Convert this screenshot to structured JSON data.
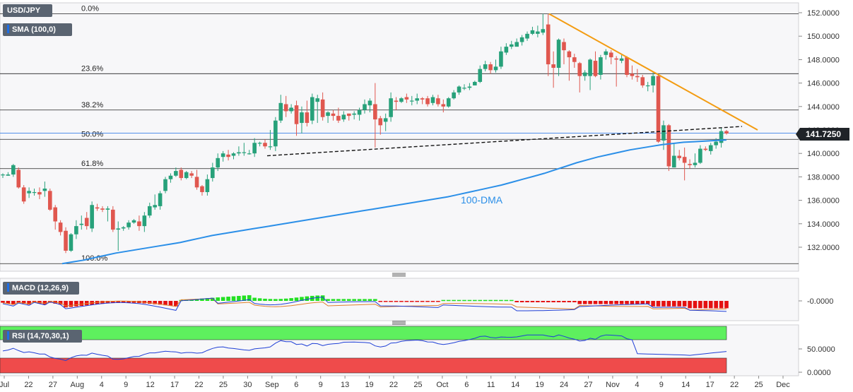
{
  "symbol": "USD/JPY",
  "indicators": {
    "sma": "SMA (100,0)",
    "macd": "MACD (12,26,9)",
    "rsi": "RSI (14,70,30,1)"
  },
  "last_price": "141.7250",
  "line_label": "100-DMA",
  "colors": {
    "bull": "#27a17a",
    "bear": "#e0574f",
    "sma": "#2b8fe8",
    "trendline": "#f39c12",
    "macd_pos": "#22e022",
    "macd_neg": "#e41111",
    "rsi_upper": "#5ef05e",
    "rsi_lower": "#ef4b4b"
  },
  "fibonacci": [
    {
      "label": "0.0%",
      "price": 151.9
    },
    {
      "label": "23.6%",
      "price": 146.8
    },
    {
      "label": "38.2%",
      "price": 143.7
    },
    {
      "label": "50.0%",
      "price": 141.2
    },
    {
      "label": "61.8%",
      "price": 138.7
    },
    {
      "label": "100.0%",
      "price": 130.6
    }
  ],
  "price_axis": {
    "ticks": [
      "152.0000",
      "150.0000",
      "148.0000",
      "146.0000",
      "144.0000",
      "142.0000",
      "140.0000",
      "138.0000",
      "136.0000",
      "134.0000",
      "132.0000"
    ]
  },
  "macd_axis": {
    "ticks": [
      "-0.0000"
    ]
  },
  "rsi_axis": {
    "ticks": [
      "50.0000",
      "0.0000"
    ]
  },
  "x_axis": {
    "labels": [
      "Jul",
      "22",
      "27",
      "Aug",
      "4",
      "9",
      "12",
      "17",
      "22",
      "25",
      "30",
      "Sep",
      "6",
      "9",
      "13",
      "19",
      "22",
      "25",
      "Oct",
      "6",
      "11",
      "14",
      "19",
      "24",
      "27",
      "Nov",
      "4",
      "9",
      "14",
      "17",
      "22",
      "25",
      "Dec"
    ]
  },
  "chart_data": {
    "type": "candlestick",
    "title": "USD/JPY",
    "price_range": [
      130.6,
      152.0
    ],
    "candles": [
      [
        138.2,
        138.2,
        137.9,
        138.3
      ],
      [
        138.1,
        138.2,
        138.1,
        138.4
      ],
      [
        138.2,
        139.0,
        138.0,
        139.1
      ],
      [
        138.6,
        137.1,
        137.0,
        138.8
      ],
      [
        137.1,
        135.9,
        135.7,
        137.3
      ],
      [
        136.6,
        136.8,
        136.2,
        137.1
      ],
      [
        136.7,
        136.7,
        136.4,
        137.0
      ],
      [
        136.7,
        136.5,
        136.1,
        137.1
      ],
      [
        136.8,
        137.0,
        136.3,
        137.6
      ],
      [
        136.8,
        135.2,
        135.1,
        137.0
      ],
      [
        135.4,
        134.2,
        133.5,
        135.6
      ],
      [
        134.1,
        133.3,
        133.0,
        134.3
      ],
      [
        133.4,
        131.7,
        131.5,
        133.7
      ],
      [
        131.7,
        133.1,
        131.6,
        133.2
      ],
      [
        133.1,
        133.8,
        132.7,
        134.3
      ],
      [
        133.9,
        134.0,
        133.5,
        134.7
      ],
      [
        134.5,
        133.8,
        133.5,
        135.0
      ],
      [
        133.6,
        135.6,
        133.3,
        135.9
      ],
      [
        135.4,
        135.3,
        135.1,
        135.7
      ],
      [
        135.3,
        135.2,
        135.0,
        135.5
      ],
      [
        135.2,
        135.3,
        134.2,
        135.5
      ],
      [
        135.2,
        133.5,
        133.3,
        135.5
      ],
      [
        133.5,
        133.6,
        131.7,
        134.2
      ],
      [
        133.6,
        133.7,
        133.4,
        133.8
      ],
      [
        133.7,
        134.1,
        133.5,
        134.3
      ],
      [
        134.1,
        134.3,
        134.0,
        134.4
      ],
      [
        134.2,
        133.8,
        133.4,
        134.7
      ],
      [
        133.8,
        134.7,
        133.3,
        135.0
      ],
      [
        134.7,
        135.5,
        134.5,
        135.8
      ],
      [
        135.4,
        135.6,
        135.2,
        136.5
      ],
      [
        135.5,
        136.6,
        135.2,
        136.8
      ],
      [
        136.8,
        137.8,
        136.6,
        138.0
      ],
      [
        137.8,
        138.1,
        137.5,
        138.3
      ],
      [
        138.1,
        138.5,
        138.0,
        138.8
      ],
      [
        138.6,
        137.9,
        137.7,
        138.8
      ],
      [
        137.9,
        138.4,
        137.8,
        138.5
      ],
      [
        138.3,
        138.1,
        137.9,
        138.5
      ],
      [
        138.0,
        137.1,
        136.9,
        138.6
      ],
      [
        137.2,
        136.7,
        136.4,
        137.3
      ],
      [
        136.7,
        137.8,
        136.4,
        138.2
      ],
      [
        137.9,
        138.8,
        137.6,
        139.2
      ],
      [
        138.8,
        139.6,
        138.5,
        140.0
      ],
      [
        139.7,
        140.0,
        139.3,
        140.2
      ],
      [
        139.9,
        139.7,
        139.4,
        140.3
      ],
      [
        139.8,
        140.0,
        139.5,
        140.1
      ],
      [
        140.0,
        140.1,
        139.8,
        140.6
      ],
      [
        140.1,
        140.1,
        139.8,
        140.9
      ],
      [
        140.0,
        140.0,
        139.9,
        140.3
      ],
      [
        140.0,
        140.9,
        139.7,
        141.3
      ],
      [
        140.9,
        140.9,
        140.6,
        141.0
      ],
      [
        140.9,
        140.6,
        140.4,
        141.2
      ],
      [
        140.6,
        140.6,
        140.3,
        142.0
      ],
      [
        140.6,
        142.8,
        140.2,
        143.1
      ],
      [
        142.8,
        144.3,
        142.6,
        145.0
      ],
      [
        144.2,
        143.6,
        143.1,
        144.9
      ],
      [
        143.6,
        143.9,
        143.4,
        144.2
      ],
      [
        144.1,
        142.5,
        141.5,
        144.5
      ],
      [
        142.6,
        143.5,
        141.7,
        144.0
      ],
      [
        143.5,
        142.6,
        142.3,
        144.5
      ],
      [
        142.8,
        144.8,
        142.5,
        145.1
      ],
      [
        144.4,
        144.7,
        142.6,
        145.0
      ],
      [
        144.6,
        143.1,
        142.8,
        145.2
      ],
      [
        143.2,
        143.5,
        142.6,
        143.6
      ],
      [
        143.4,
        143.2,
        142.8,
        143.7
      ],
      [
        143.2,
        142.8,
        142.6,
        143.9
      ],
      [
        142.9,
        143.3,
        142.7,
        143.6
      ],
      [
        143.4,
        143.2,
        142.8,
        143.4
      ],
      [
        143.3,
        143.4,
        142.9,
        143.6
      ],
      [
        143.3,
        143.7,
        142.8,
        143.9
      ],
      [
        143.7,
        144.2,
        143.4,
        144.6
      ],
      [
        144.1,
        144.5,
        143.5,
        144.7
      ],
      [
        144.2,
        142.9,
        140.5,
        146.0
      ],
      [
        143.0,
        142.4,
        141.6,
        143.2
      ],
      [
        142.7,
        143.0,
        141.9,
        143.4
      ],
      [
        143.1,
        144.7,
        142.7,
        145.2
      ],
      [
        144.5,
        144.4,
        143.7,
        144.8
      ],
      [
        144.4,
        144.7,
        144.3,
        144.8
      ],
      [
        144.8,
        144.6,
        144.3,
        145.1
      ],
      [
        144.5,
        144.5,
        144.1,
        144.9
      ],
      [
        144.5,
        144.7,
        144.2,
        145.1
      ],
      [
        144.7,
        144.6,
        144.2,
        144.8
      ],
      [
        144.7,
        144.2,
        144.0,
        144.9
      ],
      [
        144.3,
        144.8,
        144.1,
        145.0
      ],
      [
        144.7,
        144.2,
        144.0,
        145.0
      ],
      [
        144.2,
        144.0,
        143.5,
        144.6
      ],
      [
        144.0,
        144.7,
        143.9,
        144.8
      ],
      [
        144.7,
        145.2,
        144.6,
        145.4
      ],
      [
        145.2,
        145.7,
        145.0,
        145.8
      ],
      [
        145.6,
        145.6,
        145.4,
        145.9
      ],
      [
        145.6,
        145.7,
        145.4,
        146.0
      ],
      [
        145.8,
        146.1,
        145.8,
        146.2
      ],
      [
        146.1,
        147.2,
        146.0,
        147.5
      ],
      [
        147.2,
        147.6,
        147.0,
        147.9
      ],
      [
        147.6,
        147.1,
        146.8,
        147.8
      ],
      [
        147.1,
        147.4,
        146.9,
        148.0
      ],
      [
        147.4,
        148.7,
        147.2,
        149.1
      ],
      [
        148.6,
        149.1,
        148.4,
        149.4
      ],
      [
        149.1,
        149.3,
        148.9,
        149.6
      ],
      [
        149.1,
        149.5,
        149.2,
        149.8
      ],
      [
        149.5,
        149.9,
        149.2,
        150.1
      ],
      [
        149.8,
        150.2,
        149.6,
        150.4
      ],
      [
        150.2,
        150.5,
        150.1,
        150.8
      ],
      [
        150.2,
        150.4,
        149.9,
        150.9
      ],
      [
        150.3,
        150.6,
        150.1,
        151.9
      ],
      [
        151.0,
        147.6,
        146.6,
        151.9
      ],
      [
        147.6,
        147.3,
        145.6,
        148.7
      ],
      [
        147.3,
        149.7,
        146.6,
        149.8
      ],
      [
        149.5,
        148.8,
        147.6,
        149.8
      ],
      [
        148.7,
        148.2,
        146.2,
        148.8
      ],
      [
        148.2,
        147.8,
        147.3,
        148.5
      ],
      [
        147.7,
        146.6,
        145.2,
        147.8
      ],
      [
        146.6,
        146.9,
        146.2,
        147.1
      ],
      [
        146.6,
        148.0,
        145.4,
        148.1
      ],
      [
        147.9,
        146.6,
        146.5,
        148.7
      ],
      [
        146.7,
        148.2,
        146.3,
        148.4
      ],
      [
        148.4,
        148.7,
        148.0,
        148.9
      ],
      [
        148.6,
        148.2,
        147.6,
        148.8
      ],
      [
        148.1,
        148.0,
        145.7,
        148.3
      ],
      [
        147.9,
        148.1,
        147.7,
        148.4
      ],
      [
        148.2,
        146.7,
        146.5,
        148.3
      ],
      [
        146.8,
        146.6,
        146.3,
        147.5
      ],
      [
        146.6,
        146.5,
        146.1,
        147.2
      ],
      [
        146.5,
        145.8,
        145.6,
        146.7
      ],
      [
        145.8,
        145.8,
        145.3,
        146.1
      ],
      [
        145.8,
        146.6,
        145.2,
        146.9
      ],
      [
        146.6,
        141.0,
        140.9,
        146.7
      ],
      [
        141.1,
        142.4,
        140.3,
        142.8
      ],
      [
        142.4,
        138.9,
        138.5,
        142.5
      ],
      [
        138.8,
        139.8,
        138.8,
        140.8
      ],
      [
        139.8,
        139.6,
        139.4,
        140.3
      ],
      [
        139.7,
        139.2,
        137.7,
        140.5
      ],
      [
        139.1,
        139.0,
        138.7,
        139.5
      ],
      [
        139.0,
        139.2,
        138.8,
        140.0
      ],
      [
        139.2,
        140.4,
        139.1,
        140.7
      ],
      [
        140.4,
        140.3,
        140.2,
        140.6
      ],
      [
        140.2,
        140.7,
        139.9,
        140.9
      ],
      [
        140.7,
        141.0,
        140.4,
        141.3
      ],
      [
        140.9,
        141.9,
        140.5,
        142.2
      ],
      [
        141.9,
        141.7,
        141.6,
        142.0
      ]
    ],
    "sma_100": [
      130.6,
      130.75,
      130.9,
      131.1,
      131.3,
      131.5,
      131.65,
      131.8,
      131.95,
      132.1,
      132.25,
      132.4,
      132.6,
      132.8,
      133.0,
      133.15,
      133.3,
      133.45,
      133.6,
      133.75,
      133.9,
      134.05,
      134.2,
      134.35,
      134.5,
      134.65,
      134.8,
      134.95,
      135.1,
      135.25,
      135.4,
      135.55,
      135.7,
      135.85,
      136.0,
      136.15,
      136.3,
      136.5,
      136.7,
      136.9,
      137.1,
      137.3,
      137.55,
      137.8,
      138.05,
      138.3,
      138.6,
      138.9,
      139.2,
      139.45,
      139.7,
      139.9,
      140.1,
      140.3,
      140.45,
      140.6,
      140.75,
      140.85,
      140.95,
      141.0,
      141.05,
      141.1,
      141.15
    ],
    "trendline_resistance": [
      [
        151.9
      ],
      [
        142.0
      ]
    ],
    "support_line": [
      [
        139.8
      ],
      [
        142.3
      ]
    ],
    "macd": {
      "hist_signs": "mixed",
      "zero": 0
    },
    "rsi": {
      "last": 44.0,
      "upper": 70,
      "lower": 30
    }
  }
}
